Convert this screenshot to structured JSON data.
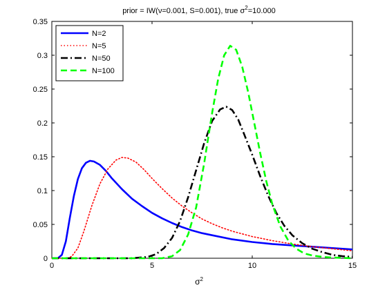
{
  "chart_data": {
    "type": "line",
    "title": {
      "pre": "prior = IW(ν=0.001, S=0.001), true σ",
      "sup": "2",
      "post": "=10.000"
    },
    "xlabel": {
      "base": "σ",
      "sup": "2"
    },
    "ylabel": "",
    "xlim": [
      0,
      15
    ],
    "ylim": [
      0,
      0.35
    ],
    "xticks": [
      0,
      5,
      10,
      15
    ],
    "yticks": [
      0,
      0.05,
      0.1,
      0.15,
      0.2,
      0.25,
      0.3,
      0.35
    ],
    "xtick_labels": [
      "0",
      "5",
      "10",
      "15"
    ],
    "ytick_labels": [
      "0",
      "0.05",
      "0.1",
      "0.15",
      "0.2",
      "0.25",
      "0.3",
      "0.35"
    ],
    "grid": false,
    "legend_position": "top-left",
    "series": [
      {
        "name": "N=2",
        "color": "#0000ff",
        "style": "solid",
        "x": [
          0,
          0.3,
          0.5,
          0.7,
          0.9,
          1.1,
          1.3,
          1.5,
          1.7,
          1.9,
          2.1,
          2.4,
          2.7,
          3.0,
          3.5,
          4.0,
          4.5,
          5.0,
          5.5,
          6.0,
          6.5,
          7.0,
          7.5,
          8.0,
          9.0,
          10.0,
          11.0,
          12.0,
          13.0,
          14.0,
          15.0
        ],
        "y": [
          0,
          0.0,
          0.005,
          0.025,
          0.06,
          0.092,
          0.117,
          0.133,
          0.141,
          0.144,
          0.143,
          0.138,
          0.129,
          0.118,
          0.102,
          0.088,
          0.077,
          0.067,
          0.059,
          0.052,
          0.046,
          0.041,
          0.037,
          0.034,
          0.028,
          0.024,
          0.021,
          0.019,
          0.017,
          0.015,
          0.013
        ]
      },
      {
        "name": "N=5",
        "color": "#ff0000",
        "style": "dotted",
        "x": [
          0,
          0.8,
          1.0,
          1.3,
          1.6,
          2.0,
          2.4,
          2.8,
          3.2,
          3.5,
          3.8,
          4.2,
          4.6,
          5.0,
          5.5,
          6.0,
          6.5,
          7.0,
          7.5,
          8.0,
          8.5,
          9.0,
          10.0,
          11.0,
          12.0,
          13.0,
          14.0,
          15.0
        ],
        "y": [
          0,
          0.0,
          0.003,
          0.015,
          0.04,
          0.078,
          0.11,
          0.132,
          0.145,
          0.149,
          0.148,
          0.142,
          0.131,
          0.118,
          0.103,
          0.089,
          0.077,
          0.067,
          0.058,
          0.051,
          0.045,
          0.04,
          0.032,
          0.026,
          0.021,
          0.017,
          0.014,
          0.011
        ]
      },
      {
        "name": "N=50",
        "color": "#000000",
        "style": "dashdot",
        "x": [
          0,
          4.0,
          4.8,
          5.2,
          5.6,
          6.0,
          6.4,
          6.8,
          7.2,
          7.6,
          8.0,
          8.4,
          8.7,
          9.0,
          9.3,
          9.6,
          10.0,
          10.4,
          10.8,
          11.2,
          11.6,
          12.0,
          12.5,
          13.0,
          13.5,
          14.0,
          14.5,
          15.0
        ],
        "y": [
          0,
          0,
          0.002,
          0.006,
          0.015,
          0.03,
          0.055,
          0.09,
          0.13,
          0.17,
          0.203,
          0.22,
          0.224,
          0.219,
          0.205,
          0.183,
          0.153,
          0.121,
          0.092,
          0.067,
          0.048,
          0.034,
          0.022,
          0.014,
          0.009,
          0.005,
          0.003,
          0.002
        ]
      },
      {
        "name": "N=100",
        "color": "#00ff00",
        "style": "dashed",
        "x": [
          0,
          5.5,
          6.0,
          6.4,
          6.8,
          7.2,
          7.6,
          8.0,
          8.3,
          8.6,
          8.9,
          9.2,
          9.5,
          9.8,
          10.1,
          10.4,
          10.7,
          11.0,
          11.4,
          11.8,
          12.2,
          12.6,
          13.0,
          13.5,
          14.0,
          15.0
        ],
        "y": [
          0,
          0,
          0.003,
          0.012,
          0.035,
          0.075,
          0.14,
          0.215,
          0.265,
          0.3,
          0.314,
          0.308,
          0.283,
          0.245,
          0.2,
          0.155,
          0.114,
          0.08,
          0.047,
          0.026,
          0.014,
          0.007,
          0.004,
          0.002,
          0.001,
          0.0
        ]
      }
    ]
  }
}
